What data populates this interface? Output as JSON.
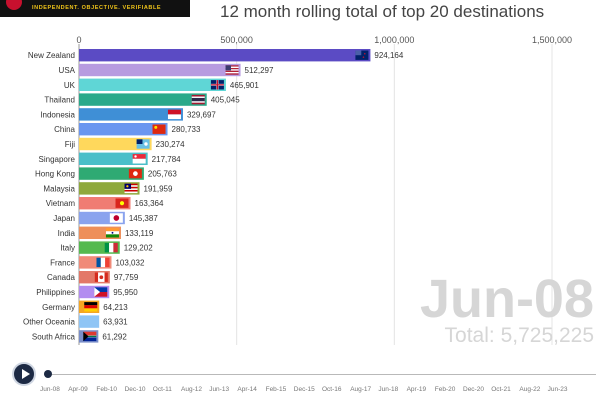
{
  "header": {
    "logo_tagline": "INDEPENDENT. OBJECTIVE. VERIFIABLE",
    "title": "12 month rolling total of top 20 destinations"
  },
  "chart_data": {
    "type": "bar",
    "orientation": "horizontal",
    "title": "12 month rolling total of top 20 destinations",
    "period": "Jun-08",
    "xlim": [
      0,
      1500000
    ],
    "x_ticks": [
      "0",
      "500,000",
      "1,000,000",
      "1,500,000"
    ],
    "x_tick_values": [
      0,
      500000,
      1000000,
      1500000
    ],
    "categories": [
      "New Zealand",
      "USA",
      "UK",
      "Thailand",
      "Indonesia",
      "China",
      "Fiji",
      "Singapore",
      "Hong Kong",
      "Malaysia",
      "Vietnam",
      "Japan",
      "India",
      "Italy",
      "France",
      "Canada",
      "Philippines",
      "Germany",
      "Other Oceania",
      "South Africa"
    ],
    "values": [
      924164,
      512297,
      465901,
      405045,
      329697,
      280733,
      230274,
      217784,
      205763,
      191959,
      163364,
      145387,
      133119,
      129202,
      103032,
      97759,
      95950,
      64213,
      63931,
      61292
    ],
    "value_labels": [
      "924,164",
      "512,297",
      "465,901",
      "405,045",
      "329,697",
      "280,733",
      "230,274",
      "217,784",
      "205,763",
      "191,959",
      "163,364",
      "145,387",
      "133,119",
      "129,202",
      "103,032",
      "97,759",
      "95,950",
      "64,213",
      "63,931",
      "61,292"
    ],
    "bar_colors": [
      "#5b4bc4",
      "#b79be0",
      "#5fd6d6",
      "#2aa98a",
      "#3f8fd6",
      "#6a96f0",
      "#ffd85c",
      "#4bbfc9",
      "#2faa73",
      "#8fa93c",
      "#f07c73",
      "#8aa3ee",
      "#ee8f5a",
      "#55b94f",
      "#f08a78",
      "#e37868",
      "#b28cf0",
      "#f5a623",
      "#8fc5f5",
      "#7a8ec9"
    ],
    "flags": [
      "nz",
      "us",
      "gb",
      "th",
      "id",
      "cn",
      "fj",
      "sg",
      "hk",
      "my",
      "vn",
      "jp",
      "in",
      "it",
      "fr",
      "ca",
      "ph",
      "de",
      "",
      "za"
    ]
  },
  "overlay": {
    "date": "Jun-08",
    "total": "Total: 5,725,225"
  },
  "timeline": {
    "play_icon": "play-icon",
    "labels": [
      "Jun-08",
      "Apr-09",
      "Feb-10",
      "Dec-10",
      "Oct-11",
      "Aug-12",
      "Jun-13",
      "Apr-14",
      "Feb-15",
      "Dec-15",
      "Oct-16",
      "Aug-17",
      "Jun-18",
      "Apr-19",
      "Feb-20",
      "Dec-20",
      "Oct-21",
      "Aug-22",
      "Jun-23"
    ]
  }
}
